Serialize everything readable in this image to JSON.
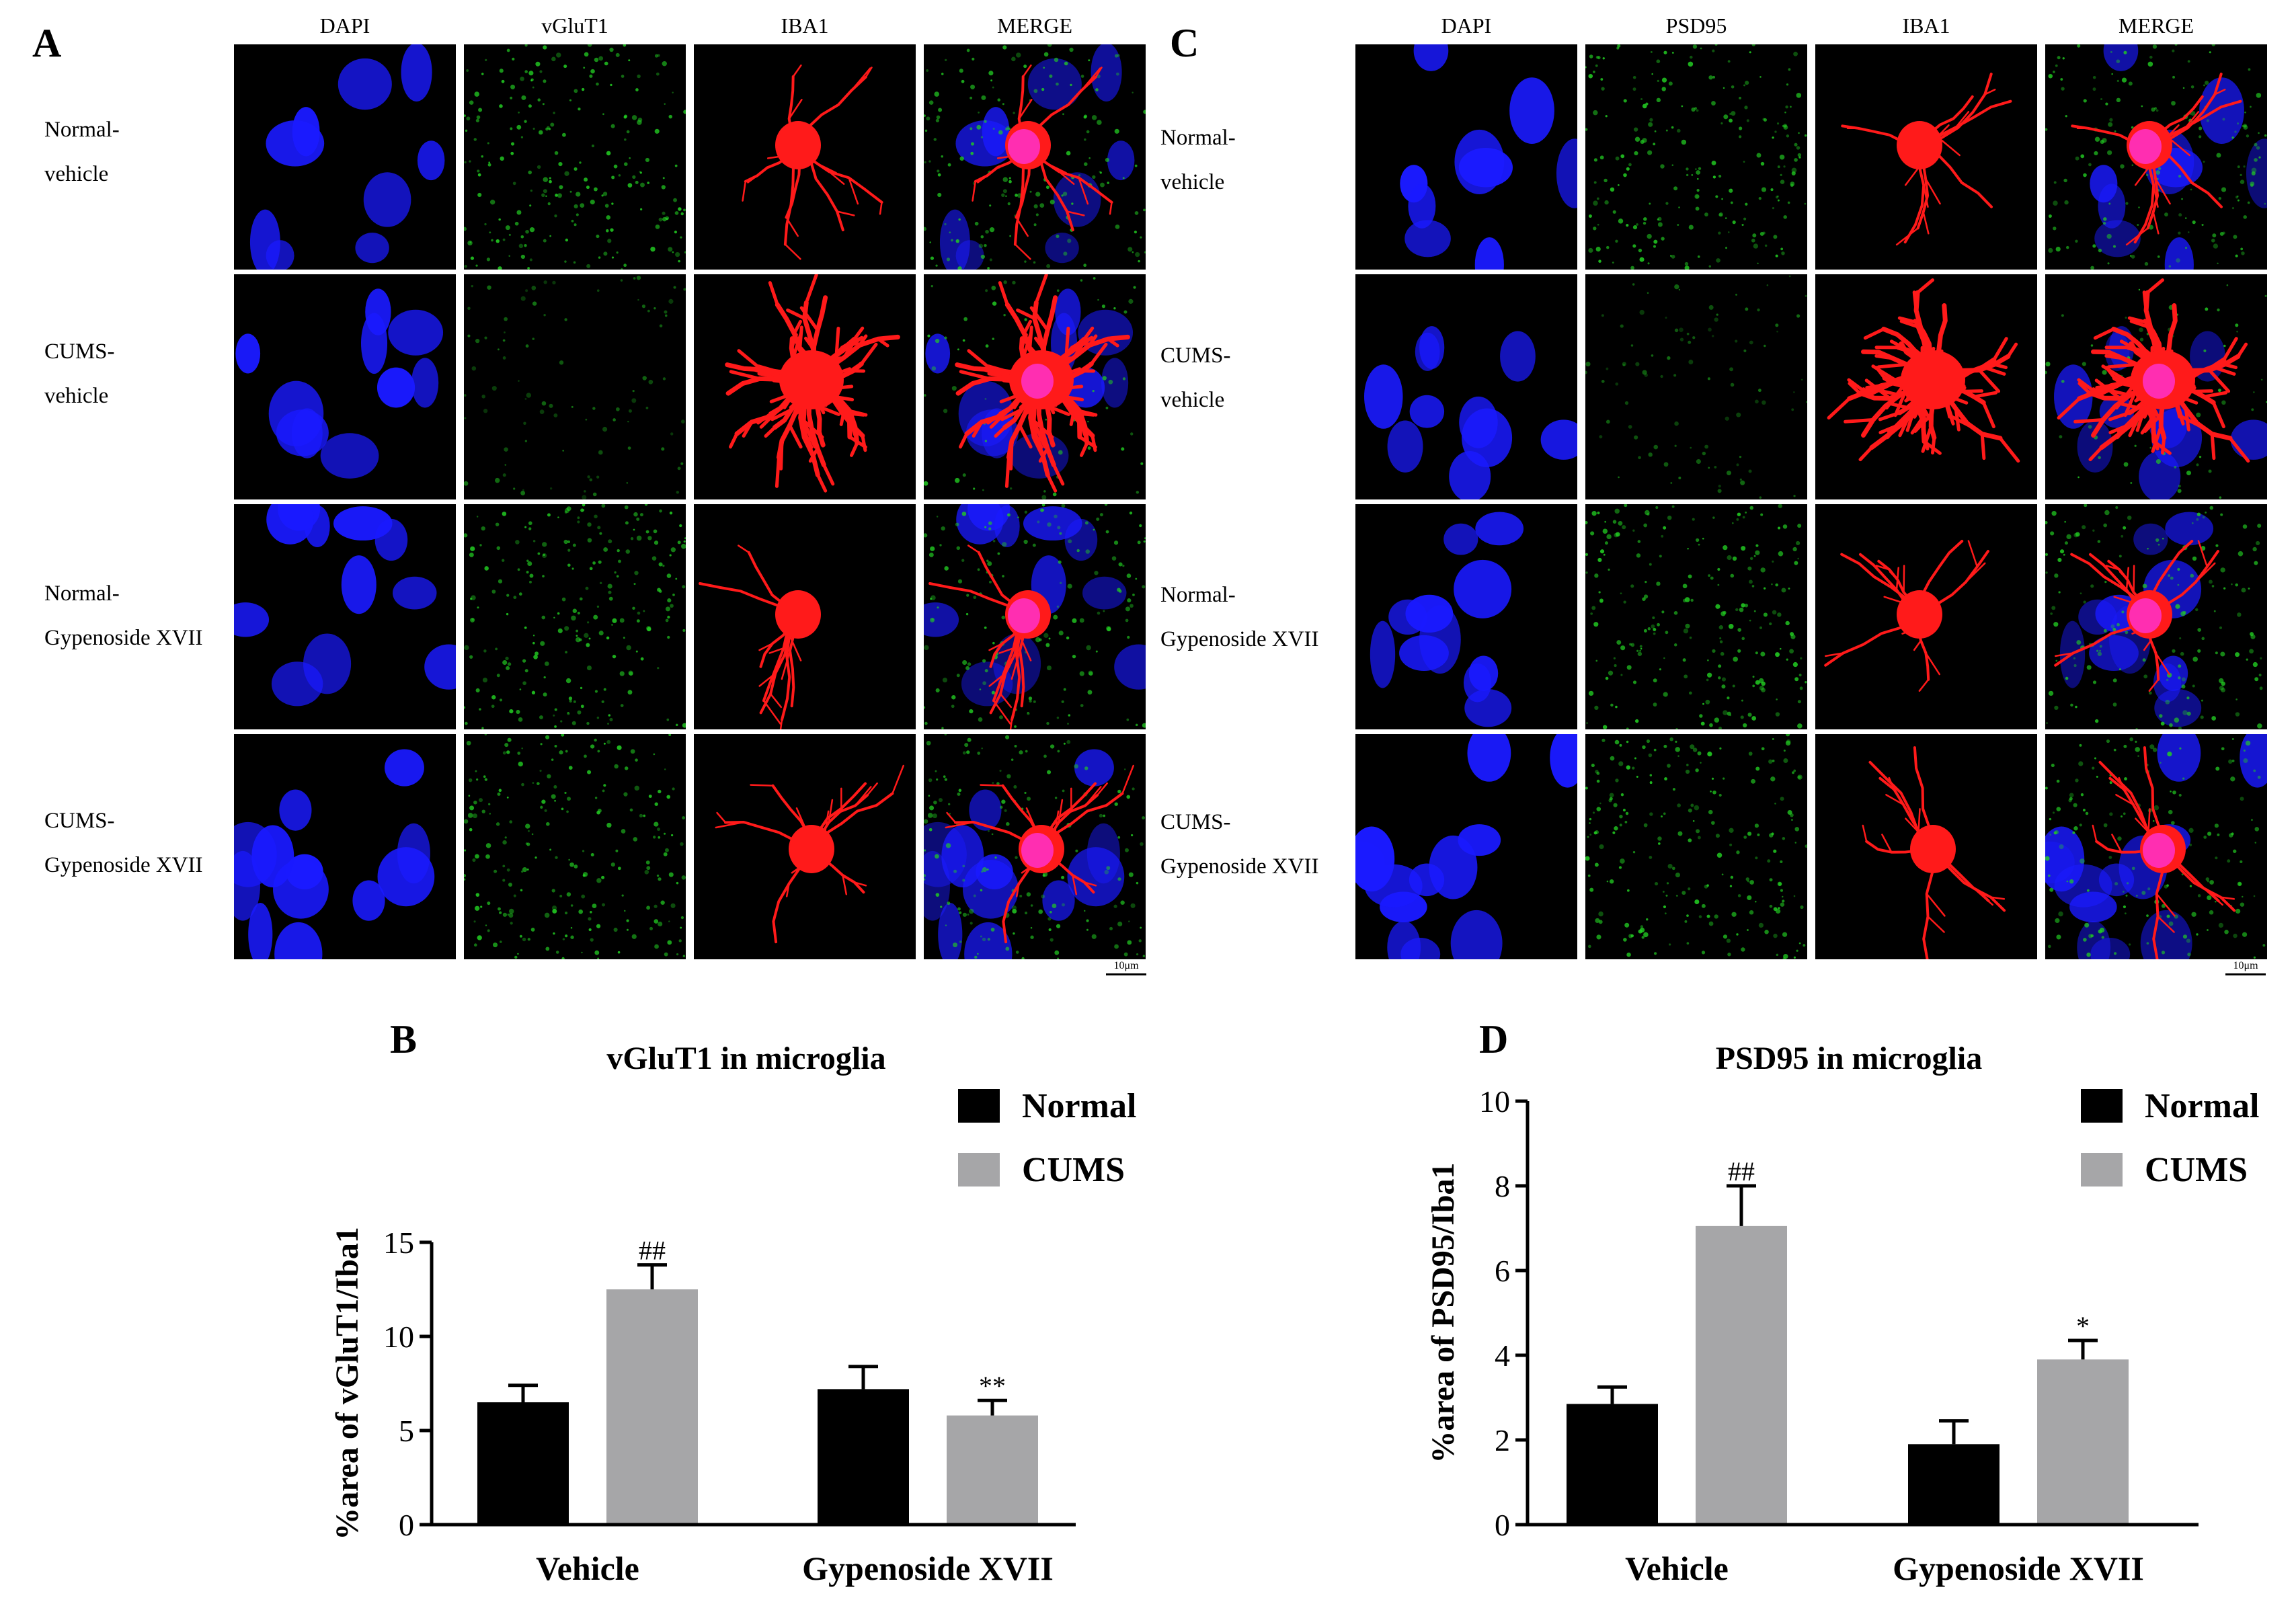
{
  "panels": {
    "A": {
      "letter": "A",
      "columns": [
        "DAPI",
        "vGluT1",
        "IBA1",
        "MERGE"
      ],
      "rows": [
        {
          "line1": "Normal-",
          "line2": "vehicle"
        },
        {
          "line1": "CUMS-",
          "line2": "vehicle"
        },
        {
          "line1": "Normal-",
          "line2": "Gypenoside XVII"
        },
        {
          "line1": "CUMS-",
          "line2": "Gypenoside XVII"
        }
      ],
      "scale_bar": "10μm"
    },
    "C": {
      "letter": "C",
      "columns": [
        "DAPI",
        "PSD95",
        "IBA1",
        "MERGE"
      ],
      "rows": [
        {
          "line1": "Normal-",
          "line2": "vehicle"
        },
        {
          "line1": "CUMS-",
          "line2": "vehicle"
        },
        {
          "line1": "Normal-",
          "line2": "Gypenoside XVII"
        },
        {
          "line1": "CUMS-",
          "line2": "Gypenoside XVII"
        }
      ],
      "scale_bar": "10μm"
    },
    "B": {
      "letter": "B"
    },
    "D": {
      "letter": "D"
    }
  },
  "colors": {
    "dapi": "#1a1aff",
    "marker": "#22cc22",
    "iba1": "#ff1a1a",
    "merge_soma": "#ff33cc",
    "normal_bar": "#000000",
    "cums_bar": "#a6a6a8"
  },
  "chart_data": [
    {
      "id": "B",
      "type": "bar",
      "title": "vGluT1 in microglia",
      "ylabel": "%area of vGluT1/Iba1",
      "xlabel": "",
      "categories": [
        "Vehicle",
        "Gypenoside XVII"
      ],
      "series": [
        {
          "name": "Normal",
          "color": "#000000",
          "values": [
            6.5,
            7.2
          ],
          "errors": [
            0.9,
            1.2
          ],
          "marks": [
            "",
            ""
          ]
        },
        {
          "name": "CUMS",
          "color": "#a6a6a8",
          "values": [
            12.5,
            5.8
          ],
          "errors": [
            1.3,
            0.8
          ],
          "marks": [
            "##",
            "**"
          ]
        }
      ],
      "ylim": [
        0,
        15
      ],
      "yticks": [
        0,
        5,
        10,
        15
      ],
      "legend": "top-right",
      "grid": false
    },
    {
      "id": "D",
      "type": "bar",
      "title": "PSD95 in microglia",
      "ylabel": "%area of PSD95/Iba1",
      "xlabel": "",
      "categories": [
        "Vehicle",
        "Gypenoside XVII"
      ],
      "series": [
        {
          "name": "Normal",
          "color": "#000000",
          "values": [
            2.85,
            1.9
          ],
          "errors": [
            0.4,
            0.55
          ],
          "marks": [
            "",
            ""
          ]
        },
        {
          "name": "CUMS",
          "color": "#a6a6a8",
          "values": [
            7.05,
            3.9
          ],
          "errors": [
            0.95,
            0.45
          ],
          "marks": [
            "##",
            "*"
          ]
        }
      ],
      "ylim": [
        0,
        10
      ],
      "yticks": [
        0,
        2,
        4,
        6,
        8,
        10
      ],
      "legend": "top-right",
      "grid": false
    }
  ]
}
